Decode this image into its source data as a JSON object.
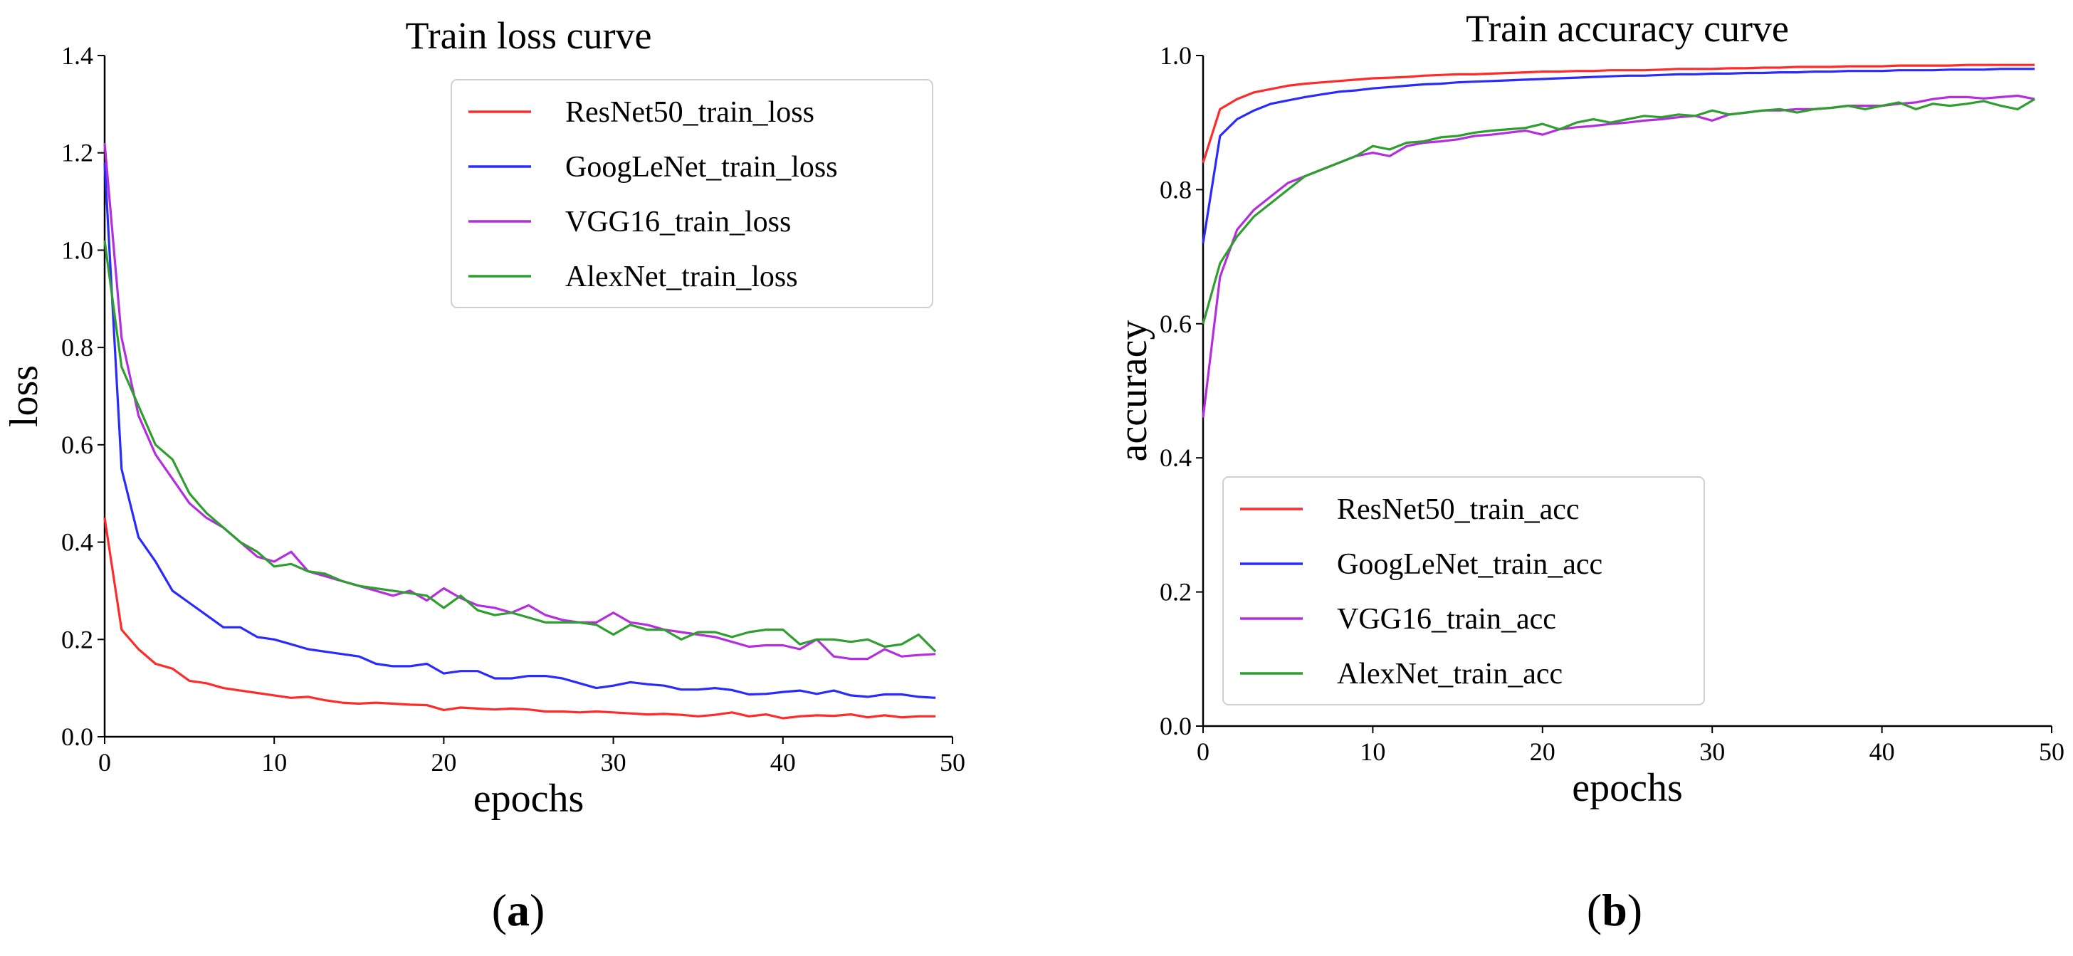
{
  "chart_data": [
    {
      "type": "line",
      "title": "Train loss curve",
      "xlabel": "epochs",
      "ylabel": "loss",
      "xlim": [
        0,
        50
      ],
      "ylim": [
        0,
        1.4
      ],
      "xticks": [
        "0",
        "10",
        "20",
        "30",
        "40",
        "50"
      ],
      "yticks": [
        "0.0",
        "0.2",
        "0.4",
        "0.6",
        "0.8",
        "1.0",
        "1.2",
        "1.4"
      ],
      "legend_position": "top-right",
      "caption_letter": "a",
      "x": [
        0,
        1,
        2,
        3,
        4,
        5,
        6,
        7,
        8,
        9,
        10,
        11,
        12,
        13,
        14,
        15,
        16,
        17,
        18,
        19,
        20,
        21,
        22,
        23,
        24,
        25,
        26,
        27,
        28,
        29,
        30,
        31,
        32,
        33,
        34,
        35,
        36,
        37,
        38,
        39,
        40,
        41,
        42,
        43,
        44,
        45,
        46,
        47,
        48,
        49
      ],
      "series": [
        {
          "name": "ResNet50_train_loss",
          "color": "#ff2a2a",
          "values": [
            0.45,
            0.22,
            0.18,
            0.15,
            0.14,
            0.115,
            0.11,
            0.1,
            0.095,
            0.09,
            0.085,
            0.08,
            0.082,
            0.075,
            0.07,
            0.068,
            0.07,
            0.068,
            0.066,
            0.065,
            0.055,
            0.06,
            0.058,
            0.056,
            0.058,
            0.056,
            0.052,
            0.052,
            0.05,
            0.052,
            0.05,
            0.048,
            0.046,
            0.047,
            0.045,
            0.042,
            0.045,
            0.05,
            0.042,
            0.046,
            0.038,
            0.042,
            0.044,
            0.043,
            0.046,
            0.04,
            0.044,
            0.04,
            0.042,
            0.042
          ]
        },
        {
          "name": "GoogLeNet_train_loss",
          "color": "#2a2aff",
          "values": [
            1.18,
            0.55,
            0.41,
            0.36,
            0.3,
            0.275,
            0.25,
            0.225,
            0.225,
            0.205,
            0.2,
            0.19,
            0.18,
            0.175,
            0.17,
            0.165,
            0.15,
            0.145,
            0.145,
            0.15,
            0.13,
            0.135,
            0.135,
            0.12,
            0.12,
            0.125,
            0.125,
            0.12,
            0.11,
            0.1,
            0.105,
            0.112,
            0.108,
            0.105,
            0.097,
            0.097,
            0.1,
            0.096,
            0.087,
            0.088,
            0.092,
            0.095,
            0.088,
            0.095,
            0.085,
            0.082,
            0.087,
            0.087,
            0.082,
            0.08
          ]
        },
        {
          "name": "VGG16_train_loss",
          "color": "#b42ee0",
          "values": [
            1.22,
            0.82,
            0.66,
            0.58,
            0.53,
            0.48,
            0.45,
            0.43,
            0.4,
            0.37,
            0.36,
            0.38,
            0.34,
            0.33,
            0.32,
            0.31,
            0.3,
            0.29,
            0.3,
            0.28,
            0.305,
            0.285,
            0.27,
            0.265,
            0.255,
            0.27,
            0.25,
            0.24,
            0.235,
            0.235,
            0.255,
            0.235,
            0.23,
            0.22,
            0.215,
            0.21,
            0.205,
            0.195,
            0.185,
            0.188,
            0.188,
            0.18,
            0.2,
            0.165,
            0.16,
            0.16,
            0.18,
            0.165,
            0.168,
            0.17
          ]
        },
        {
          "name": "AlexNet_train_loss",
          "color": "#2e9e2e",
          "values": [
            1.02,
            0.76,
            0.68,
            0.6,
            0.57,
            0.5,
            0.46,
            0.43,
            0.4,
            0.38,
            0.35,
            0.355,
            0.34,
            0.335,
            0.32,
            0.31,
            0.305,
            0.3,
            0.295,
            0.29,
            0.265,
            0.29,
            0.26,
            0.25,
            0.255,
            0.245,
            0.235,
            0.235,
            0.235,
            0.23,
            0.21,
            0.23,
            0.22,
            0.22,
            0.2,
            0.215,
            0.215,
            0.205,
            0.215,
            0.22,
            0.22,
            0.19,
            0.2,
            0.2,
            0.195,
            0.2,
            0.185,
            0.19,
            0.21,
            0.175
          ]
        }
      ]
    },
    {
      "type": "line",
      "title": "Train accuracy curve",
      "xlabel": "epochs",
      "ylabel": "accuracy",
      "xlim": [
        0,
        50
      ],
      "ylim": [
        0,
        1.0
      ],
      "xticks": [
        "0",
        "10",
        "20",
        "30",
        "40",
        "50"
      ],
      "yticks": [
        "0.0",
        "0.2",
        "0.4",
        "0.6",
        "0.8",
        "1.0"
      ],
      "legend_position": "lower-left",
      "caption_letter": "b",
      "x": [
        0,
        1,
        2,
        3,
        4,
        5,
        6,
        7,
        8,
        9,
        10,
        11,
        12,
        13,
        14,
        15,
        16,
        17,
        18,
        19,
        20,
        21,
        22,
        23,
        24,
        25,
        26,
        27,
        28,
        29,
        30,
        31,
        32,
        33,
        34,
        35,
        36,
        37,
        38,
        39,
        40,
        41,
        42,
        43,
        44,
        45,
        46,
        47,
        48,
        49
      ],
      "series": [
        {
          "name": "ResNet50_train_acc",
          "color": "#ff2a2a",
          "values": [
            0.84,
            0.92,
            0.935,
            0.945,
            0.95,
            0.955,
            0.958,
            0.96,
            0.962,
            0.964,
            0.966,
            0.967,
            0.968,
            0.97,
            0.971,
            0.972,
            0.972,
            0.973,
            0.974,
            0.975,
            0.976,
            0.976,
            0.977,
            0.977,
            0.978,
            0.978,
            0.978,
            0.979,
            0.98,
            0.98,
            0.98,
            0.981,
            0.981,
            0.982,
            0.982,
            0.983,
            0.983,
            0.983,
            0.984,
            0.984,
            0.984,
            0.985,
            0.985,
            0.985,
            0.985,
            0.986,
            0.986,
            0.986,
            0.986,
            0.986
          ]
        },
        {
          "name": "GoogLeNet_train_acc",
          "color": "#2a2aff",
          "values": [
            0.72,
            0.88,
            0.905,
            0.918,
            0.928,
            0.933,
            0.938,
            0.942,
            0.946,
            0.948,
            0.951,
            0.953,
            0.955,
            0.957,
            0.958,
            0.96,
            0.961,
            0.962,
            0.963,
            0.964,
            0.965,
            0.966,
            0.967,
            0.968,
            0.969,
            0.97,
            0.97,
            0.971,
            0.972,
            0.972,
            0.973,
            0.973,
            0.974,
            0.974,
            0.975,
            0.975,
            0.976,
            0.976,
            0.977,
            0.977,
            0.977,
            0.978,
            0.978,
            0.978,
            0.979,
            0.979,
            0.979,
            0.98,
            0.98,
            0.98
          ]
        },
        {
          "name": "VGG16_train_acc",
          "color": "#b42ee0",
          "values": [
            0.46,
            0.67,
            0.74,
            0.77,
            0.79,
            0.81,
            0.82,
            0.83,
            0.84,
            0.85,
            0.855,
            0.85,
            0.865,
            0.87,
            0.872,
            0.875,
            0.88,
            0.882,
            0.885,
            0.888,
            0.882,
            0.89,
            0.893,
            0.895,
            0.898,
            0.9,
            0.903,
            0.905,
            0.908,
            0.91,
            0.903,
            0.912,
            0.915,
            0.918,
            0.918,
            0.92,
            0.92,
            0.922,
            0.925,
            0.925,
            0.925,
            0.928,
            0.93,
            0.935,
            0.938,
            0.938,
            0.936,
            0.938,
            0.94,
            0.935
          ]
        },
        {
          "name": "AlexNet_train_acc",
          "color": "#2e9e2e",
          "values": [
            0.6,
            0.69,
            0.73,
            0.76,
            0.78,
            0.8,
            0.82,
            0.83,
            0.84,
            0.85,
            0.865,
            0.86,
            0.87,
            0.872,
            0.878,
            0.88,
            0.885,
            0.888,
            0.89,
            0.892,
            0.898,
            0.89,
            0.9,
            0.905,
            0.9,
            0.905,
            0.91,
            0.908,
            0.912,
            0.91,
            0.918,
            0.912,
            0.915,
            0.918,
            0.92,
            0.915,
            0.92,
            0.922,
            0.925,
            0.92,
            0.925,
            0.93,
            0.92,
            0.928,
            0.925,
            0.928,
            0.932,
            0.925,
            0.92,
            0.935
          ]
        }
      ]
    }
  ]
}
